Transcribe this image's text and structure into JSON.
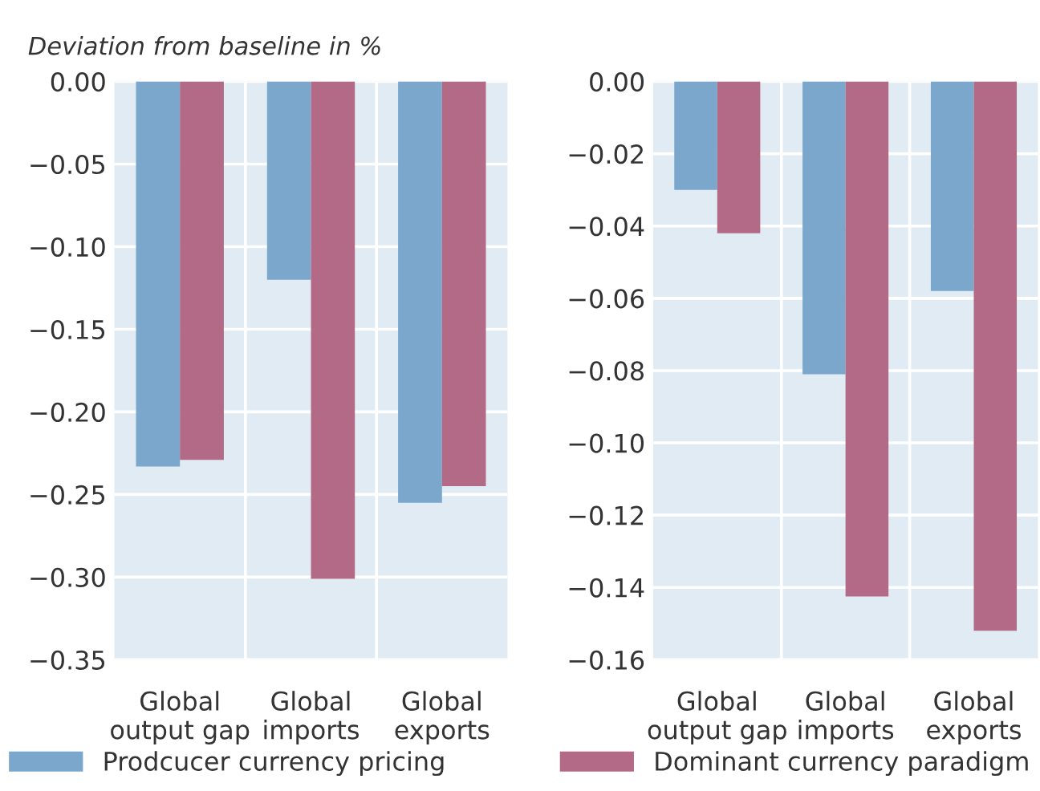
{
  "chart_data": [
    {
      "type": "bar",
      "title": "Deviation from baseline in %",
      "categories": [
        "Global\noutput gap",
        "Global\nimports",
        "Global\nexports"
      ],
      "series": [
        {
          "name": "Prodcucer currency pricing",
          "color": "#7aa7cb",
          "values": [
            -0.233,
            -0.12,
            -0.255
          ]
        },
        {
          "name": "Dominant currency paradigm",
          "color": "#b36a87",
          "values": [
            -0.229,
            -0.301,
            -0.245
          ]
        }
      ],
      "ylim": [
        -0.35,
        0
      ],
      "yticks": [
        {
          "value": 0,
          "label": "0.00"
        },
        {
          "value": -0.05,
          "label": "−0.05"
        },
        {
          "value": -0.1,
          "label": "−0.10"
        },
        {
          "value": -0.15,
          "label": "−0.15"
        },
        {
          "value": -0.2,
          "label": "−0.20"
        },
        {
          "value": -0.25,
          "label": "−0.25"
        },
        {
          "value": -0.3,
          "label": "−0.30"
        },
        {
          "value": -0.35,
          "label": "−0.35"
        }
      ],
      "grid": true,
      "legend": "bottom"
    },
    {
      "type": "bar",
      "categories": [
        "Global\noutput gap",
        "Global\nimports",
        "Global\nexports"
      ],
      "series": [
        {
          "name": "Prodcucer currency pricing",
          "color": "#7aa7cb",
          "values": [
            -0.03,
            -0.081,
            -0.058
          ]
        },
        {
          "name": "Dominant currency paradigm",
          "color": "#b36a87",
          "values": [
            -0.042,
            -0.1425,
            -0.152
          ]
        }
      ],
      "ylim": [
        -0.16,
        0
      ],
      "yticks": [
        {
          "value": 0,
          "label": "0.00"
        },
        {
          "value": -0.02,
          "label": "−0.02"
        },
        {
          "value": -0.04,
          "label": "−0.04"
        },
        {
          "value": -0.06,
          "label": "−0.06"
        },
        {
          "value": -0.08,
          "label": "−0.08"
        },
        {
          "value": -0.1,
          "label": "−0.10"
        },
        {
          "value": -0.12,
          "label": "−0.12"
        },
        {
          "value": -0.14,
          "label": "−0.14"
        },
        {
          "value": -0.16,
          "label": "−0.16"
        }
      ],
      "grid": true,
      "legend": "bottom"
    }
  ]
}
